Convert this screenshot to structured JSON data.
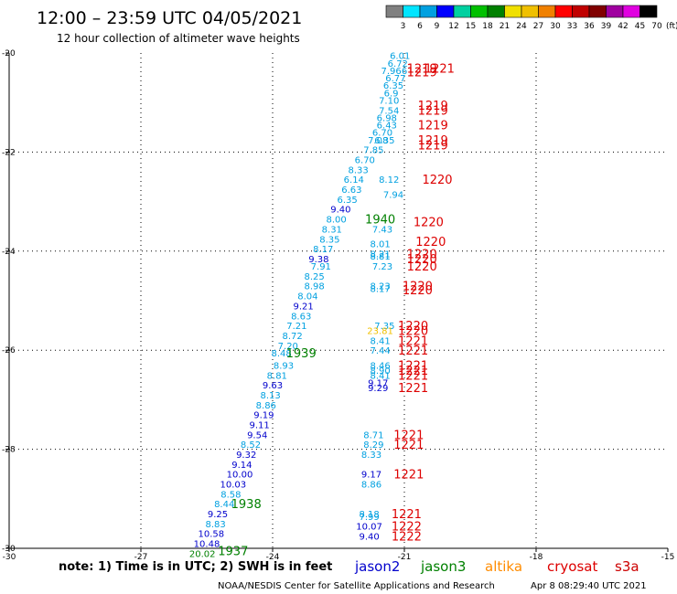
{
  "header": {
    "title": "12:00 – 23:59 UTC 04/05/2021",
    "subtitle": "12 hour collection of altimeter wave heights"
  },
  "colorbar": {
    "unit_label": "(ft)",
    "ticks": [
      "3",
      "6",
      "9",
      "12",
      "15",
      "18",
      "21",
      "24",
      "27",
      "30",
      "33",
      "36",
      "39",
      "42",
      "45",
      "70"
    ],
    "colors": [
      "#808080",
      "#00e5ff",
      "#00a0e0",
      "#0000ff",
      "#00d0a0",
      "#00c000",
      "#008000",
      "#f0e000",
      "#f0c000",
      "#f08000",
      "#ff0000",
      "#c00000",
      "#800000",
      "#a000a0",
      "#e000e0",
      "#000000"
    ]
  },
  "footer": {
    "note": "note: 1) Time is in UTC; 2) SWH is in feet",
    "credit": "NOAA/NESDIS Center for Satellite Applications and Research",
    "timestamp": "Apr  8 08:29:40 UTC 2021"
  },
  "legend": [
    {
      "name": "jason2",
      "color": "#0000cc"
    },
    {
      "name": "jason3",
      "color": "#008000"
    },
    {
      "name": "altika",
      "color": "#ff8c00"
    },
    {
      "name": "cryosat",
      "color": "#dd0000"
    },
    {
      "name": "s3a",
      "color": "#cc0000"
    }
  ],
  "chart_data": {
    "type": "scatter",
    "title": "12:00 – 23:59 UTC 04/05/2021",
    "subtitle": "12 hour collection of altimeter wave heights",
    "xlim": [
      -30,
      -15
    ],
    "ylim": [
      -30,
      -20
    ],
    "x_ticks": [
      "-30",
      "-27",
      "-24",
      "-21",
      "-18",
      "-15"
    ],
    "y_ticks": [
      "-20",
      "-22",
      "-24",
      "-26",
      "-28",
      "-30"
    ],
    "grid": true,
    "swh_labels": [
      {
        "lon": -21.1,
        "lat": -20.05,
        "text": "6.01",
        "color": "#00a0e0"
      },
      {
        "lon": -21.15,
        "lat": -20.2,
        "text": "6.72",
        "color": "#00a0e0"
      },
      {
        "lon": -21.3,
        "lat": -20.35,
        "text": "7.96",
        "color": "#00a0e0"
      },
      {
        "lon": -21.0,
        "lat": -20.35,
        "text": "6",
        "color": "#00a0e0"
      },
      {
        "lon": -21.2,
        "lat": -20.5,
        "text": "6.77",
        "color": "#00a0e0"
      },
      {
        "lon": -21.25,
        "lat": -20.65,
        "text": "6.35",
        "color": "#00a0e0"
      },
      {
        "lon": -21.3,
        "lat": -20.8,
        "text": "6.9",
        "color": "#00a0e0"
      },
      {
        "lon": -21.35,
        "lat": -20.95,
        "text": "7.10",
        "color": "#00a0e0"
      },
      {
        "lon": -21.35,
        "lat": -21.15,
        "text": "7.54",
        "color": "#00a0e0"
      },
      {
        "lon": -21.4,
        "lat": -21.3,
        "text": "6.98",
        "color": "#00a0e0"
      },
      {
        "lon": -21.4,
        "lat": -21.45,
        "text": "6.43",
        "color": "#00a0e0"
      },
      {
        "lon": -21.5,
        "lat": -21.6,
        "text": "6.70",
        "color": "#00a0e0"
      },
      {
        "lon": -21.45,
        "lat": -21.75,
        "text": "6.35",
        "color": "#00a0e0"
      },
      {
        "lon": -21.6,
        "lat": -21.75,
        "text": "7.08",
        "color": "#00a0e0"
      },
      {
        "lon": -21.7,
        "lat": -21.95,
        "text": "7.85",
        "color": "#00a0e0"
      },
      {
        "lon": -21.9,
        "lat": -22.15,
        "text": "6.70",
        "color": "#00a0e0"
      },
      {
        "lon": -22.05,
        "lat": -22.35,
        "text": "8.33",
        "color": "#00a0e0"
      },
      {
        "lon": -22.15,
        "lat": -22.55,
        "text": "6.14",
        "color": "#00a0e0"
      },
      {
        "lon": -21.35,
        "lat": -22.55,
        "text": "8.12",
        "color": "#00a0e0"
      },
      {
        "lon": -22.2,
        "lat": -22.75,
        "text": "6.63",
        "color": "#00a0e0"
      },
      {
        "lon": -21.25,
        "lat": -22.85,
        "text": "7.94",
        "color": "#00a0e0"
      },
      {
        "lon": -22.3,
        "lat": -22.95,
        "text": "6.35",
        "color": "#00a0e0"
      },
      {
        "lon": -22.45,
        "lat": -23.15,
        "text": "9.40",
        "color": "#0000cc"
      },
      {
        "lon": -22.55,
        "lat": -23.35,
        "text": "8.00",
        "color": "#00a0e0"
      },
      {
        "lon": -21.5,
        "lat": -23.55,
        "text": "7.43",
        "color": "#00a0e0"
      },
      {
        "lon": -22.65,
        "lat": -23.55,
        "text": "8.31",
        "color": "#00a0e0"
      },
      {
        "lon": -22.7,
        "lat": -23.75,
        "text": "8.35",
        "color": "#00a0e0"
      },
      {
        "lon": -21.55,
        "lat": -23.85,
        "text": "8.01",
        "color": "#00a0e0"
      },
      {
        "lon": -22.85,
        "lat": -23.95,
        "text": "8.17",
        "color": "#00a0e0"
      },
      {
        "lon": -21.55,
        "lat": -24.05,
        "text": "8.21",
        "color": "#00a0e0"
      },
      {
        "lon": -21.55,
        "lat": -24.1,
        "text": "8.81",
        "color": "#00a0e0"
      },
      {
        "lon": -22.95,
        "lat": -24.15,
        "text": "9.38",
        "color": "#0000cc"
      },
      {
        "lon": -22.9,
        "lat": -24.3,
        "text": "7.91",
        "color": "#00a0e0"
      },
      {
        "lon": -21.5,
        "lat": -24.3,
        "text": "7.23",
        "color": "#00a0e0"
      },
      {
        "lon": -23.05,
        "lat": -24.5,
        "text": "8.25",
        "color": "#00a0e0"
      },
      {
        "lon": -23.05,
        "lat": -24.7,
        "text": "8.98",
        "color": "#00a0e0"
      },
      {
        "lon": -21.55,
        "lat": -24.7,
        "text": "8.23",
        "color": "#00a0e0"
      },
      {
        "lon": -21.55,
        "lat": -24.75,
        "text": "8.17",
        "color": "#00a0e0"
      },
      {
        "lon": -23.2,
        "lat": -24.9,
        "text": "8.04",
        "color": "#00a0e0"
      },
      {
        "lon": -23.3,
        "lat": -25.1,
        "text": "9.21",
        "color": "#0000cc"
      },
      {
        "lon": -23.35,
        "lat": -25.3,
        "text": "8.63",
        "color": "#00a0e0"
      },
      {
        "lon": -23.45,
        "lat": -25.5,
        "text": "7.21",
        "color": "#00a0e0"
      },
      {
        "lon": -21.45,
        "lat": -25.5,
        "text": "7.35",
        "color": "#00a0e0"
      },
      {
        "lon": -21.55,
        "lat": -25.6,
        "text": "23.81",
        "color": "#f0c000"
      },
      {
        "lon": -23.55,
        "lat": -25.7,
        "text": "8.72",
        "color": "#00a0e0"
      },
      {
        "lon": -21.55,
        "lat": -25.8,
        "text": "8.41",
        "color": "#00a0e0"
      },
      {
        "lon": -23.65,
        "lat": -25.9,
        "text": "7.20",
        "color": "#00a0e0"
      },
      {
        "lon": -21.55,
        "lat": -26.0,
        "text": "7.44",
        "color": "#00a0e0"
      },
      {
        "lon": -23.8,
        "lat": -26.05,
        "text": "8.48",
        "color": "#00a0e0"
      },
      {
        "lon": -23.75,
        "lat": -26.3,
        "text": "8.93",
        "color": "#00a0e0"
      },
      {
        "lon": -21.55,
        "lat": -26.3,
        "text": "8.46",
        "color": "#00a0e0"
      },
      {
        "lon": -21.55,
        "lat": -26.4,
        "text": "8.90",
        "color": "#00a0e0"
      },
      {
        "lon": -23.9,
        "lat": -26.5,
        "text": "8.81",
        "color": "#00a0e0"
      },
      {
        "lon": -21.55,
        "lat": -26.5,
        "text": "8.41",
        "color": "#00a0e0"
      },
      {
        "lon": -24.0,
        "lat": -26.7,
        "text": "9.63",
        "color": "#0000cc"
      },
      {
        "lon": -21.6,
        "lat": -26.65,
        "text": "9.17",
        "color": "#0000cc"
      },
      {
        "lon": -21.6,
        "lat": -26.75,
        "text": "9.29",
        "color": "#0000cc"
      },
      {
        "lon": -24.05,
        "lat": -26.9,
        "text": "8.13",
        "color": "#00a0e0"
      },
      {
        "lon": -24.15,
        "lat": -27.1,
        "text": "8.86",
        "color": "#00a0e0"
      },
      {
        "lon": -24.2,
        "lat": -27.3,
        "text": "9.19",
        "color": "#0000cc"
      },
      {
        "lon": -24.3,
        "lat": -27.5,
        "text": "9.11",
        "color": "#0000cc"
      },
      {
        "lon": -24.35,
        "lat": -27.7,
        "text": "9.54",
        "color": "#0000cc"
      },
      {
        "lon": -21.7,
        "lat": -27.7,
        "text": "8.71",
        "color": "#00a0e0"
      },
      {
        "lon": -24.5,
        "lat": -27.9,
        "text": "8.52",
        "color": "#00a0e0"
      },
      {
        "lon": -21.7,
        "lat": -27.9,
        "text": "8.29",
        "color": "#00a0e0"
      },
      {
        "lon": -24.6,
        "lat": -28.1,
        "text": "9.32",
        "color": "#0000cc"
      },
      {
        "lon": -21.75,
        "lat": -28.1,
        "text": "8.33",
        "color": "#00a0e0"
      },
      {
        "lon": -24.7,
        "lat": -28.3,
        "text": "9.14",
        "color": "#0000cc"
      },
      {
        "lon": -24.75,
        "lat": -28.5,
        "text": "10.00",
        "color": "#0000cc"
      },
      {
        "lon": -21.75,
        "lat": -28.5,
        "text": "9.17",
        "color": "#0000cc"
      },
      {
        "lon": -24.9,
        "lat": -28.7,
        "text": "10.03",
        "color": "#0000cc"
      },
      {
        "lon": -21.75,
        "lat": -28.7,
        "text": "8.86",
        "color": "#00a0e0"
      },
      {
        "lon": -24.95,
        "lat": -28.9,
        "text": "8.58",
        "color": "#00a0e0"
      },
      {
        "lon": -25.1,
        "lat": -29.1,
        "text": "8.44",
        "color": "#00a0e0"
      },
      {
        "lon": -25.25,
        "lat": -29.3,
        "text": "9.25",
        "color": "#0000cc"
      },
      {
        "lon": -21.8,
        "lat": -29.3,
        "text": "8.18",
        "color": "#00a0e0"
      },
      {
        "lon": -21.8,
        "lat": -29.35,
        "text": "7.99",
        "color": "#00a0e0"
      },
      {
        "lon": -25.3,
        "lat": -29.5,
        "text": "8.83",
        "color": "#00a0e0"
      },
      {
        "lon": -21.8,
        "lat": -29.55,
        "text": "10.07",
        "color": "#0000cc"
      },
      {
        "lon": -25.4,
        "lat": -29.7,
        "text": "10.58",
        "color": "#0000cc"
      },
      {
        "lon": -21.8,
        "lat": -29.75,
        "text": "9.40",
        "color": "#0000cc"
      },
      {
        "lon": -25.5,
        "lat": -29.9,
        "text": "10.48",
        "color": "#0000cc"
      },
      {
        "lon": -25.6,
        "lat": -30.1,
        "text": "20.02",
        "color": "#008000"
      }
    ],
    "time_labels": [
      {
        "lon": -20.6,
        "lat": -20.3,
        "text": "1219",
        "color": "#dd0000"
      },
      {
        "lon": -20.2,
        "lat": -20.3,
        "text": "1221",
        "color": "#dd0000"
      },
      {
        "lon": -20.6,
        "lat": -20.38,
        "text": "1219",
        "color": "#dd0000"
      },
      {
        "lon": -20.35,
        "lat": -21.05,
        "text": "1219",
        "color": "#dd0000"
      },
      {
        "lon": -20.35,
        "lat": -21.15,
        "text": "1219",
        "color": "#dd0000"
      },
      {
        "lon": -20.35,
        "lat": -21.45,
        "text": "1219",
        "color": "#dd0000"
      },
      {
        "lon": -20.35,
        "lat": -21.75,
        "text": "1219",
        "color": "#dd0000"
      },
      {
        "lon": -20.35,
        "lat": -21.85,
        "text": "1219",
        "color": "#dd0000"
      },
      {
        "lon": -20.25,
        "lat": -22.55,
        "text": "1220",
        "color": "#dd0000"
      },
      {
        "lon": -20.45,
        "lat": -23.4,
        "text": "1220",
        "color": "#dd0000"
      },
      {
        "lon": -21.55,
        "lat": -23.35,
        "text": "1940",
        "color": "#008000"
      },
      {
        "lon": -20.4,
        "lat": -23.8,
        "text": "1220",
        "color": "#dd0000"
      },
      {
        "lon": -20.6,
        "lat": -24.05,
        "text": "1220",
        "color": "#dd0000"
      },
      {
        "lon": -20.6,
        "lat": -24.15,
        "text": "1220",
        "color": "#dd0000"
      },
      {
        "lon": -20.6,
        "lat": -24.3,
        "text": "1220",
        "color": "#dd0000"
      },
      {
        "lon": -20.7,
        "lat": -24.7,
        "text": "1220",
        "color": "#dd0000"
      },
      {
        "lon": -20.7,
        "lat": -24.78,
        "text": "1220",
        "color": "#dd0000"
      },
      {
        "lon": -20.8,
        "lat": -25.5,
        "text": "1220",
        "color": "#dd0000"
      },
      {
        "lon": -20.8,
        "lat": -25.6,
        "text": "1220",
        "color": "#dd0000"
      },
      {
        "lon": -20.8,
        "lat": -25.8,
        "text": "1221",
        "color": "#dd0000"
      },
      {
        "lon": -20.8,
        "lat": -26.0,
        "text": "1221",
        "color": "#dd0000"
      },
      {
        "lon": -23.35,
        "lat": -26.05,
        "text": "1939",
        "color": "#008000"
      },
      {
        "lon": -20.8,
        "lat": -26.3,
        "text": "1221",
        "color": "#dd0000"
      },
      {
        "lon": -20.8,
        "lat": -26.4,
        "text": "1221",
        "color": "#dd0000"
      },
      {
        "lon": -20.8,
        "lat": -26.5,
        "text": "1221",
        "color": "#dd0000"
      },
      {
        "lon": -20.8,
        "lat": -26.75,
        "text": "1221",
        "color": "#dd0000"
      },
      {
        "lon": -20.9,
        "lat": -27.7,
        "text": "1221",
        "color": "#dd0000"
      },
      {
        "lon": -20.9,
        "lat": -27.9,
        "text": "1221",
        "color": "#dd0000"
      },
      {
        "lon": -20.9,
        "lat": -28.5,
        "text": "1221",
        "color": "#dd0000"
      },
      {
        "lon": -24.6,
        "lat": -29.1,
        "text": "1938",
        "color": "#008000"
      },
      {
        "lon": -20.95,
        "lat": -29.3,
        "text": "1221",
        "color": "#dd0000"
      },
      {
        "lon": -20.95,
        "lat": -29.55,
        "text": "1222",
        "color": "#dd0000"
      },
      {
        "lon": -20.95,
        "lat": -29.75,
        "text": "1222",
        "color": "#dd0000"
      },
      {
        "lon": -24.9,
        "lat": -30.05,
        "text": "1937",
        "color": "#008000"
      }
    ]
  }
}
